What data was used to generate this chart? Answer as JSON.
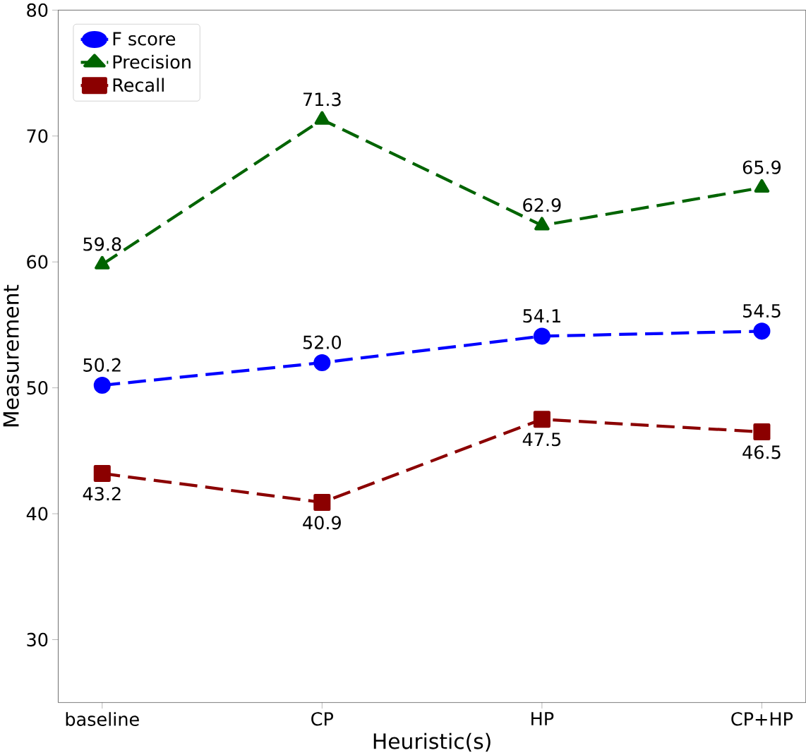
{
  "chart_data": {
    "type": "line",
    "xlabel": "Heuristic(s)",
    "ylabel": "Measurement",
    "categories": [
      "baseline",
      "CP",
      "HP",
      "CP+HP"
    ],
    "ylim": [
      25,
      80
    ],
    "yticks": [
      30,
      40,
      50,
      60,
      70,
      80
    ],
    "series": [
      {
        "name": "F score",
        "color": "#0000ff",
        "marker": "circle",
        "values": [
          50.2,
          52.0,
          54.1,
          54.5
        ],
        "value_labels": [
          "50.2",
          "52.0",
          "54.1",
          "54.5"
        ]
      },
      {
        "name": "Precision",
        "color": "#006400",
        "marker": "triangle",
        "values": [
          59.8,
          71.3,
          62.9,
          65.9
        ],
        "value_labels": [
          "59.8",
          "71.3",
          "62.9",
          "65.9"
        ]
      },
      {
        "name": "Recall",
        "color": "#8b0000",
        "marker": "square",
        "values": [
          43.2,
          40.9,
          47.5,
          46.5
        ],
        "value_labels": [
          "43.2",
          "40.9",
          "47.5",
          "46.5"
        ]
      }
    ],
    "line_style": "dashed",
    "legend": "top left",
    "grid": false
  }
}
